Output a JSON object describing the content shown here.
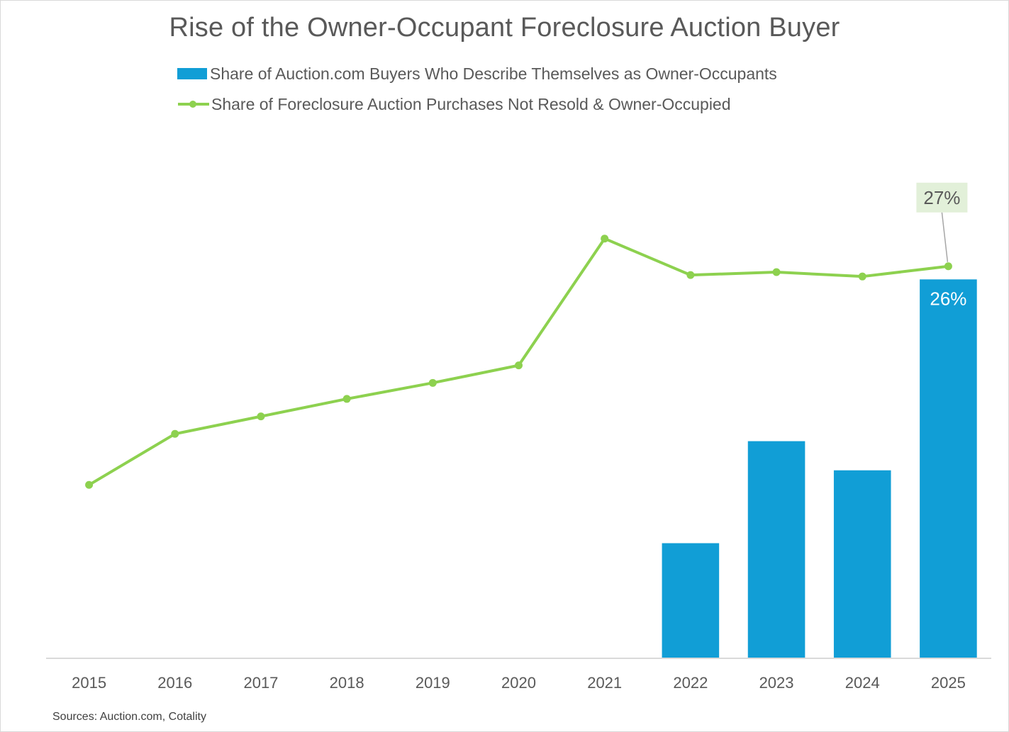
{
  "chart_data": {
    "type": "bar+line",
    "title": "Rise of the Owner-Occupant Foreclosure Auction Buyer",
    "categories": [
      "2015",
      "2016",
      "2017",
      "2018",
      "2019",
      "2020",
      "2021",
      "2022",
      "2023",
      "2024",
      "2025"
    ],
    "series": [
      {
        "name": "Share of Auction.com Buyers Who Describe Themselves as Owner-Occupants",
        "type": "bar",
        "color": "#119ed6",
        "values": [
          null,
          null,
          null,
          null,
          null,
          null,
          null,
          7.9,
          14.9,
          12.9,
          26.0
        ],
        "data_labels": [
          null,
          null,
          null,
          null,
          null,
          null,
          null,
          null,
          null,
          null,
          "26%"
        ]
      },
      {
        "name": "Share of Foreclosure Auction Purchases Not Resold & Owner-Occupied",
        "type": "line",
        "color": "#8dd14f",
        "values": [
          11.9,
          15.4,
          16.6,
          17.8,
          18.9,
          20.1,
          28.8,
          26.3,
          26.5,
          26.2,
          26.9
        ],
        "data_labels": [
          null,
          null,
          null,
          null,
          null,
          null,
          null,
          null,
          null,
          null,
          "27%"
        ]
      }
    ],
    "ylim": [
      0,
      30
    ],
    "yaxis_visible": false,
    "grid": false,
    "legend_position": "top",
    "label_box_color": "#e2f0d9"
  },
  "footer": {
    "sources": "Sources: Auction.com, Cotality"
  }
}
